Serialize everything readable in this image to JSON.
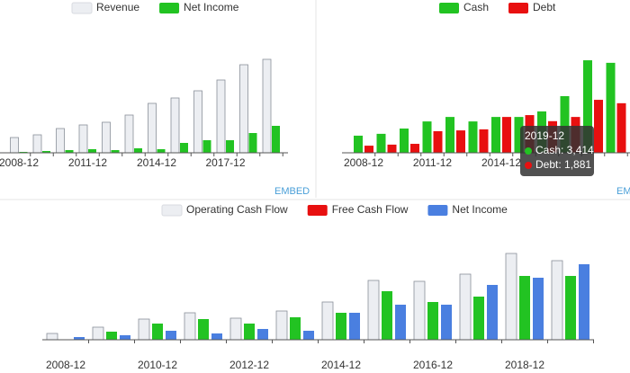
{
  "chart_data": [
    {
      "type": "bar",
      "categories": [
        "2008-12",
        null,
        null,
        "2011-12",
        null,
        null,
        "2014-12",
        null,
        null,
        "2017-12",
        null,
        null
      ],
      "series": [
        {
          "name": "Revenue",
          "color": "#eceef2",
          "values": [
            17,
            20,
            27,
            31,
            34,
            42,
            55,
            61,
            69,
            81,
            98,
            104
          ]
        },
        {
          "name": "Net Income",
          "color": "#22c322",
          "values": [
            1,
            2,
            3,
            4,
            3,
            5,
            4,
            11,
            14,
            14,
            22,
            30
          ]
        }
      ],
      "ylim": [
        0,
        150
      ],
      "link": "EMBED"
    },
    {
      "type": "bar",
      "categories": [
        "2008-12",
        null,
        null,
        "2011-12",
        null,
        null,
        "2014-12",
        null,
        null,
        null,
        null,
        null
      ],
      "series": [
        {
          "name": "Cash",
          "color": "#22c322",
          "values": [
            650,
            720,
            920,
            1190,
            1360,
            1190,
            1360,
            1360,
            1570,
            2150,
            3510,
            3414
          ]
        },
        {
          "name": "Debt",
          "color": "#e81010",
          "values": [
            270,
            310,
            340,
            820,
            850,
            890,
            1360,
            1430,
            1200,
            1360,
            2010,
            1881
          ]
        }
      ],
      "ylim": [
        0,
        5115
      ],
      "tooltip": {
        "title": "2019-12",
        "lines": [
          "Cash: 3,414",
          "Debt: 1,881"
        ]
      },
      "link": "EMBED"
    },
    {
      "type": "bar",
      "categories": [
        "2008-12",
        null,
        "2010-12",
        null,
        "2012-12",
        null,
        "2014-12",
        null,
        "2016-12",
        null,
        "2018-12",
        null
      ],
      "series": [
        {
          "name": "Operating Cash Flow",
          "color": "#eceef2",
          "values": [
            7,
            14,
            23,
            30,
            24,
            32,
            42,
            66,
            65,
            73,
            96,
            88
          ]
        },
        {
          "name": "Free Cash Flow",
          "color": "#22c322",
          "legend_color": "#e81010",
          "values": [
            0,
            9,
            18,
            23,
            18,
            25,
            30,
            54,
            42,
            48,
            71,
            71
          ]
        },
        {
          "name": "Net Income",
          "color": "#4a7fe0",
          "values": [
            3,
            5,
            10,
            7,
            12,
            10,
            30,
            39,
            39,
            61,
            69,
            84
          ]
        }
      ],
      "ylim": [
        0,
        128
      ]
    }
  ]
}
